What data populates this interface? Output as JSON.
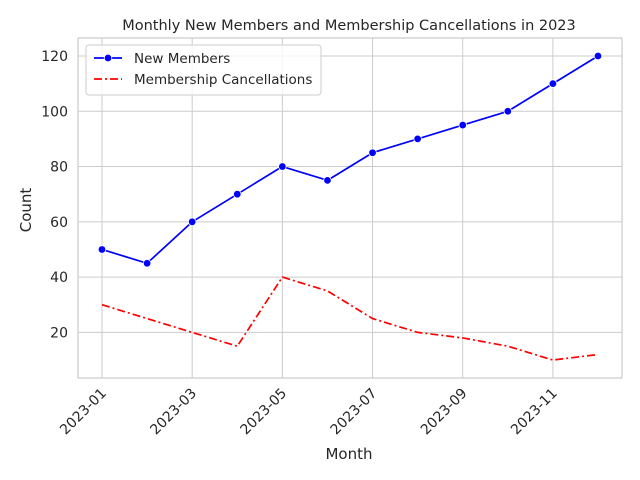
{
  "chart_data": {
    "type": "line",
    "title": "Monthly New Members and Membership Cancellations in 2023",
    "xlabel": "Month",
    "ylabel": "Count",
    "x": [
      "2023-01",
      "2023-02",
      "2023-03",
      "2023-04",
      "2023-05",
      "2023-06",
      "2023-07",
      "2023-08",
      "2023-09",
      "2023-10",
      "2023-11",
      "2023-12"
    ],
    "xticks": [
      "2023-01",
      "2023-03",
      "2023-05",
      "2023-07",
      "2023-09",
      "2023-11"
    ],
    "yticks": [
      20,
      40,
      60,
      80,
      100,
      120
    ],
    "ylim": [
      3.5,
      126.5
    ],
    "grid": true,
    "legend_position": "top-left",
    "series": [
      {
        "name": "New Members",
        "color": "#0000ff",
        "line_style": "solid",
        "marker": "circle",
        "values": [
          50,
          45,
          60,
          70,
          80,
          75,
          85,
          90,
          95,
          100,
          110,
          120
        ]
      },
      {
        "name": "Membership Cancellations",
        "color": "#ff0000",
        "line_style": "dash-dot",
        "marker": "none",
        "values": [
          30,
          25,
          20,
          15,
          40,
          35,
          25,
          20,
          18,
          15,
          10,
          12
        ]
      }
    ]
  }
}
